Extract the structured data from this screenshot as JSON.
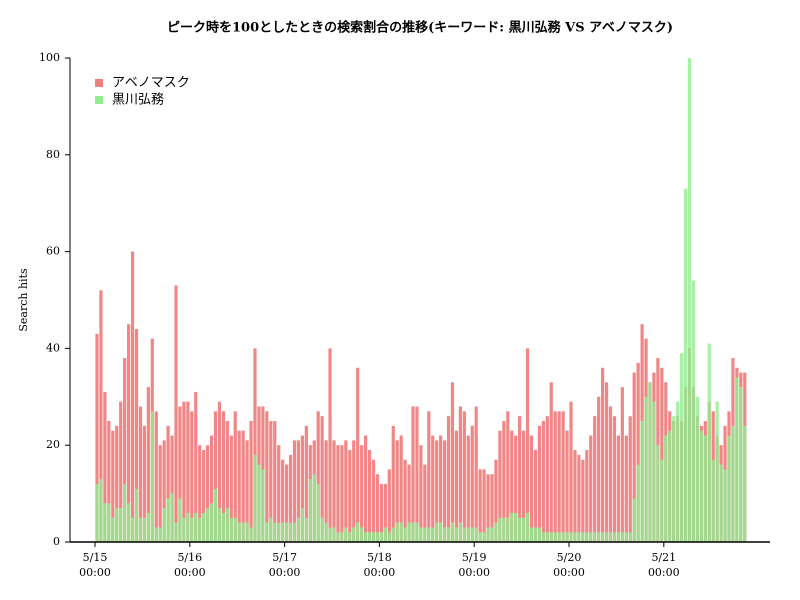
{
  "chart_data": {
    "type": "bar",
    "title": "ピーク時を100としたときの検索割合の推移(キーワード: 黒川弘務 VS アベノマスク)",
    "y_label": "Search hits",
    "categories": [
      "5/15 00:00",
      null,
      null,
      null,
      null,
      null,
      null,
      null,
      null,
      null,
      null,
      null,
      null,
      null,
      null,
      null,
      null,
      null,
      null,
      null,
      null,
      null,
      null,
      null,
      "5/16 00:00",
      null,
      null,
      null,
      null,
      null,
      null,
      null,
      null,
      null,
      null,
      null,
      null,
      null,
      null,
      null,
      null,
      null,
      null,
      null,
      null,
      null,
      null,
      null,
      "5/17 00:00",
      null,
      null,
      null,
      null,
      null,
      null,
      null,
      null,
      null,
      null,
      null,
      null,
      null,
      null,
      null,
      null,
      null,
      null,
      null,
      null,
      null,
      null,
      null,
      "5/18 00:00",
      null,
      null,
      null,
      null,
      null,
      null,
      null,
      null,
      null,
      null,
      null,
      null,
      null,
      null,
      null,
      null,
      null,
      null,
      null,
      null,
      null,
      null,
      null,
      "5/19 00:00",
      null,
      null,
      null,
      null,
      null,
      null,
      null,
      null,
      null,
      null,
      null,
      null,
      null,
      null,
      null,
      null,
      null,
      null,
      null,
      null,
      null,
      null,
      null,
      "5/20 00:00",
      null,
      null,
      null,
      null,
      null,
      null,
      null,
      null,
      null,
      null,
      null,
      null,
      null,
      null,
      null,
      null,
      null,
      null,
      null,
      null,
      null,
      null,
      null,
      "5/21 00:00",
      null,
      null,
      null,
      null,
      null,
      null,
      null,
      null,
      null,
      null,
      null,
      null,
      null,
      null,
      null,
      null,
      null,
      null,
      null,
      null
    ],
    "series": [
      {
        "name": "アベノマスク",
        "color": "#f08080",
        "values": [
          43,
          52,
          31,
          25,
          23,
          24,
          29,
          38,
          45,
          60,
          44,
          28,
          24,
          32,
          42,
          27,
          20,
          21,
          24,
          22,
          53,
          28,
          29,
          29,
          27,
          31,
          20,
          19,
          20,
          22,
          27,
          29,
          27,
          25,
          22,
          27,
          23,
          23,
          21,
          25,
          40,
          28,
          28,
          27,
          25,
          25,
          20,
          17,
          16,
          18,
          21,
          21,
          22,
          24,
          20,
          21,
          27,
          26,
          21,
          40,
          21,
          20,
          20,
          21,
          19,
          21,
          36,
          20,
          22,
          19,
          17,
          14,
          12,
          12,
          15,
          24,
          21,
          22,
          17,
          16,
          28,
          28,
          20,
          16,
          27,
          22,
          21,
          22,
          21,
          26,
          33,
          23,
          28,
          27,
          22,
          24,
          28,
          15,
          15,
          14,
          14,
          17,
          23,
          25,
          27,
          23,
          22,
          26,
          23,
          40,
          22,
          19,
          24,
          25,
          26,
          33,
          27,
          27,
          27,
          23,
          29,
          19,
          18,
          17,
          19,
          22,
          26,
          30,
          36,
          33,
          28,
          26,
          22,
          32,
          22,
          26,
          35,
          37,
          45,
          42,
          33,
          35,
          38,
          36,
          33,
          27,
          25,
          26,
          25,
          32,
          40,
          32,
          26,
          24,
          25,
          29,
          27,
          22,
          20,
          24,
          27,
          38,
          36,
          35,
          35
        ]
      },
      {
        "name": "黒川弘務",
        "color": "#90ee90",
        "values": [
          12,
          13,
          8,
          8,
          5,
          7,
          7,
          12,
          8,
          5,
          11,
          5,
          5,
          6,
          27,
          3,
          3,
          7,
          9,
          10,
          4,
          9,
          5,
          6,
          5,
          6,
          5,
          6,
          7,
          8,
          11,
          7,
          6,
          7,
          5,
          5,
          4,
          4,
          4,
          3,
          18,
          16,
          15,
          4,
          5,
          4,
          4,
          4,
          4,
          4,
          4,
          5,
          7,
          5,
          13,
          14,
          12,
          5,
          4,
          3,
          3,
          2,
          2,
          3,
          2,
          3,
          4,
          3,
          2,
          2,
          2,
          2,
          2,
          3,
          2,
          3,
          4,
          4,
          3,
          4,
          4,
          4,
          3,
          3,
          3,
          3,
          4,
          4,
          3,
          3,
          4,
          3,
          4,
          3,
          3,
          3,
          3,
          2,
          2,
          3,
          3,
          4,
          5,
          5,
          5,
          6,
          6,
          5,
          5,
          6,
          3,
          3,
          3,
          2,
          2,
          2,
          2,
          2,
          2,
          2,
          2,
          2,
          2,
          2,
          2,
          2,
          2,
          2,
          2,
          2,
          2,
          2,
          2,
          2,
          2,
          2,
          9,
          16,
          25,
          30,
          33,
          29,
          20,
          17,
          22,
          23,
          26,
          29,
          39,
          73,
          100,
          54,
          30,
          23,
          22,
          41,
          17,
          29,
          16,
          15,
          22,
          24,
          34,
          32,
          24
        ]
      }
    ],
    "ylim": [
      0,
      100
    ],
    "yticks": [
      0,
      20,
      40,
      60,
      80,
      100
    ],
    "legend": "upper left"
  }
}
